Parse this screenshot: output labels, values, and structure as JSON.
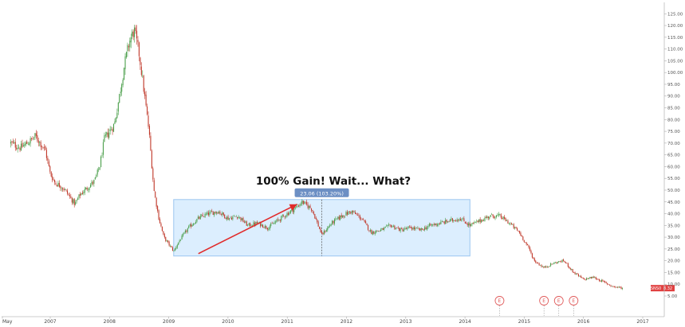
{
  "chart_data": {
    "type": "candlestick",
    "title": "",
    "xlabel": "",
    "ylabel": "",
    "grid": false,
    "ylim": [
      5,
      125
    ],
    "x_ticks": [
      "May",
      "2007",
      "2008",
      "2009",
      "2010",
      "2011",
      "2012",
      "2013",
      "2014",
      "2015",
      "2016",
      "2017"
    ],
    "y_ticks": [
      "125.00",
      "120.00",
      "115.00",
      "110.00",
      "105.00",
      "100.00",
      "95.00",
      "90.00",
      "85.00",
      "80.00",
      "75.00",
      "70.00",
      "65.00",
      "60.00",
      "55.00",
      "50.00",
      "45.00",
      "40.00",
      "35.00",
      "30.00",
      "25.00",
      "20.00",
      "15.00",
      "10.00",
      "5.00"
    ],
    "series": [
      {
        "points": [
          [
            "2006-05",
            70
          ],
          [
            "2006-07",
            68
          ],
          [
            "2006-09",
            71
          ],
          [
            "2006-10",
            73
          ],
          [
            "2006-12",
            67
          ],
          [
            "2007-01",
            57
          ],
          [
            "2007-02",
            53
          ],
          [
            "2007-03",
            52
          ],
          [
            "2007-04",
            50
          ],
          [
            "2007-05",
            47
          ],
          [
            "2007-06",
            44
          ],
          [
            "2007-07",
            48
          ],
          [
            "2007-08",
            50
          ],
          [
            "2007-09",
            52
          ],
          [
            "2007-10",
            54
          ],
          [
            "2007-11",
            60
          ],
          [
            "2007-12",
            72
          ],
          [
            "2008-01",
            75
          ],
          [
            "2008-02",
            78
          ],
          [
            "2008-03",
            90
          ],
          [
            "2008-04",
            103
          ],
          [
            "2008-05",
            113
          ],
          [
            "2008-06",
            118
          ],
          [
            "2008-07",
            108
          ],
          [
            "2008-08",
            92
          ],
          [
            "2008-09",
            75
          ],
          [
            "2008-10",
            50
          ],
          [
            "2008-11",
            38
          ],
          [
            "2008-12",
            30
          ],
          [
            "2009-02",
            24
          ],
          [
            "2009-03",
            28
          ],
          [
            "2009-05",
            34
          ],
          [
            "2009-07",
            38
          ],
          [
            "2009-09",
            40
          ],
          [
            "2009-11",
            41
          ],
          [
            "2010-01",
            38
          ],
          [
            "2010-03",
            39
          ],
          [
            "2010-05",
            35
          ],
          [
            "2010-07",
            36
          ],
          [
            "2010-09",
            34
          ],
          [
            "2010-11",
            37
          ],
          [
            "2011-01",
            40
          ],
          [
            "2011-03",
            43
          ],
          [
            "2011-04",
            45
          ],
          [
            "2011-06",
            42
          ],
          [
            "2011-08",
            31
          ],
          [
            "2011-10",
            36
          ],
          [
            "2011-12",
            39
          ],
          [
            "2012-02",
            41
          ],
          [
            "2012-04",
            38
          ],
          [
            "2012-06",
            32
          ],
          [
            "2012-08",
            33
          ],
          [
            "2012-10",
            35
          ],
          [
            "2012-12",
            33
          ],
          [
            "2013-02",
            34
          ],
          [
            "2013-04",
            33
          ],
          [
            "2013-06",
            35
          ],
          [
            "2013-08",
            36
          ],
          [
            "2013-10",
            37
          ],
          [
            "2013-12",
            38
          ],
          [
            "2014-02",
            35
          ],
          [
            "2014-04",
            37
          ],
          [
            "2014-06",
            39
          ],
          [
            "2014-08",
            39
          ],
          [
            "2014-10",
            36
          ],
          [
            "2014-12",
            32
          ],
          [
            "2015-02",
            25
          ],
          [
            "2015-03",
            20
          ],
          [
            "2015-05",
            17
          ],
          [
            "2015-07",
            19
          ],
          [
            "2015-09",
            20
          ],
          [
            "2015-11",
            15
          ],
          [
            "2016-01",
            12
          ],
          [
            "2016-03",
            13
          ],
          [
            "2016-05",
            11
          ],
          [
            "2016-07",
            9
          ],
          [
            "2016-09",
            8.3
          ]
        ]
      }
    ],
    "annotation": {
      "text": "100% Gain! Wait... What?",
      "badge": "23.06 (103.20%)",
      "range_x": [
        "2009-02",
        "2014-02"
      ],
      "range_y": [
        22,
        46
      ],
      "split_x": "2011-08",
      "arrow_from": [
        "2009-07",
        23
      ],
      "arrow_to": [
        "2011-03",
        44
      ]
    },
    "earnings_markers": {
      "label": "E",
      "dates": [
        "2014-08",
        "2015-05",
        "2015-08",
        "2015-11"
      ]
    },
    "symbol_badge": "SNS0",
    "last_price": "8.32",
    "colors": {
      "up": "#4a9e4a",
      "down": "#c0392b",
      "range_fill": "#dceefe",
      "range_border": "#9cc6f0",
      "badge": "#6c8fc4",
      "arrow": "#e12a2a",
      "price_label": "#e04040"
    }
  }
}
